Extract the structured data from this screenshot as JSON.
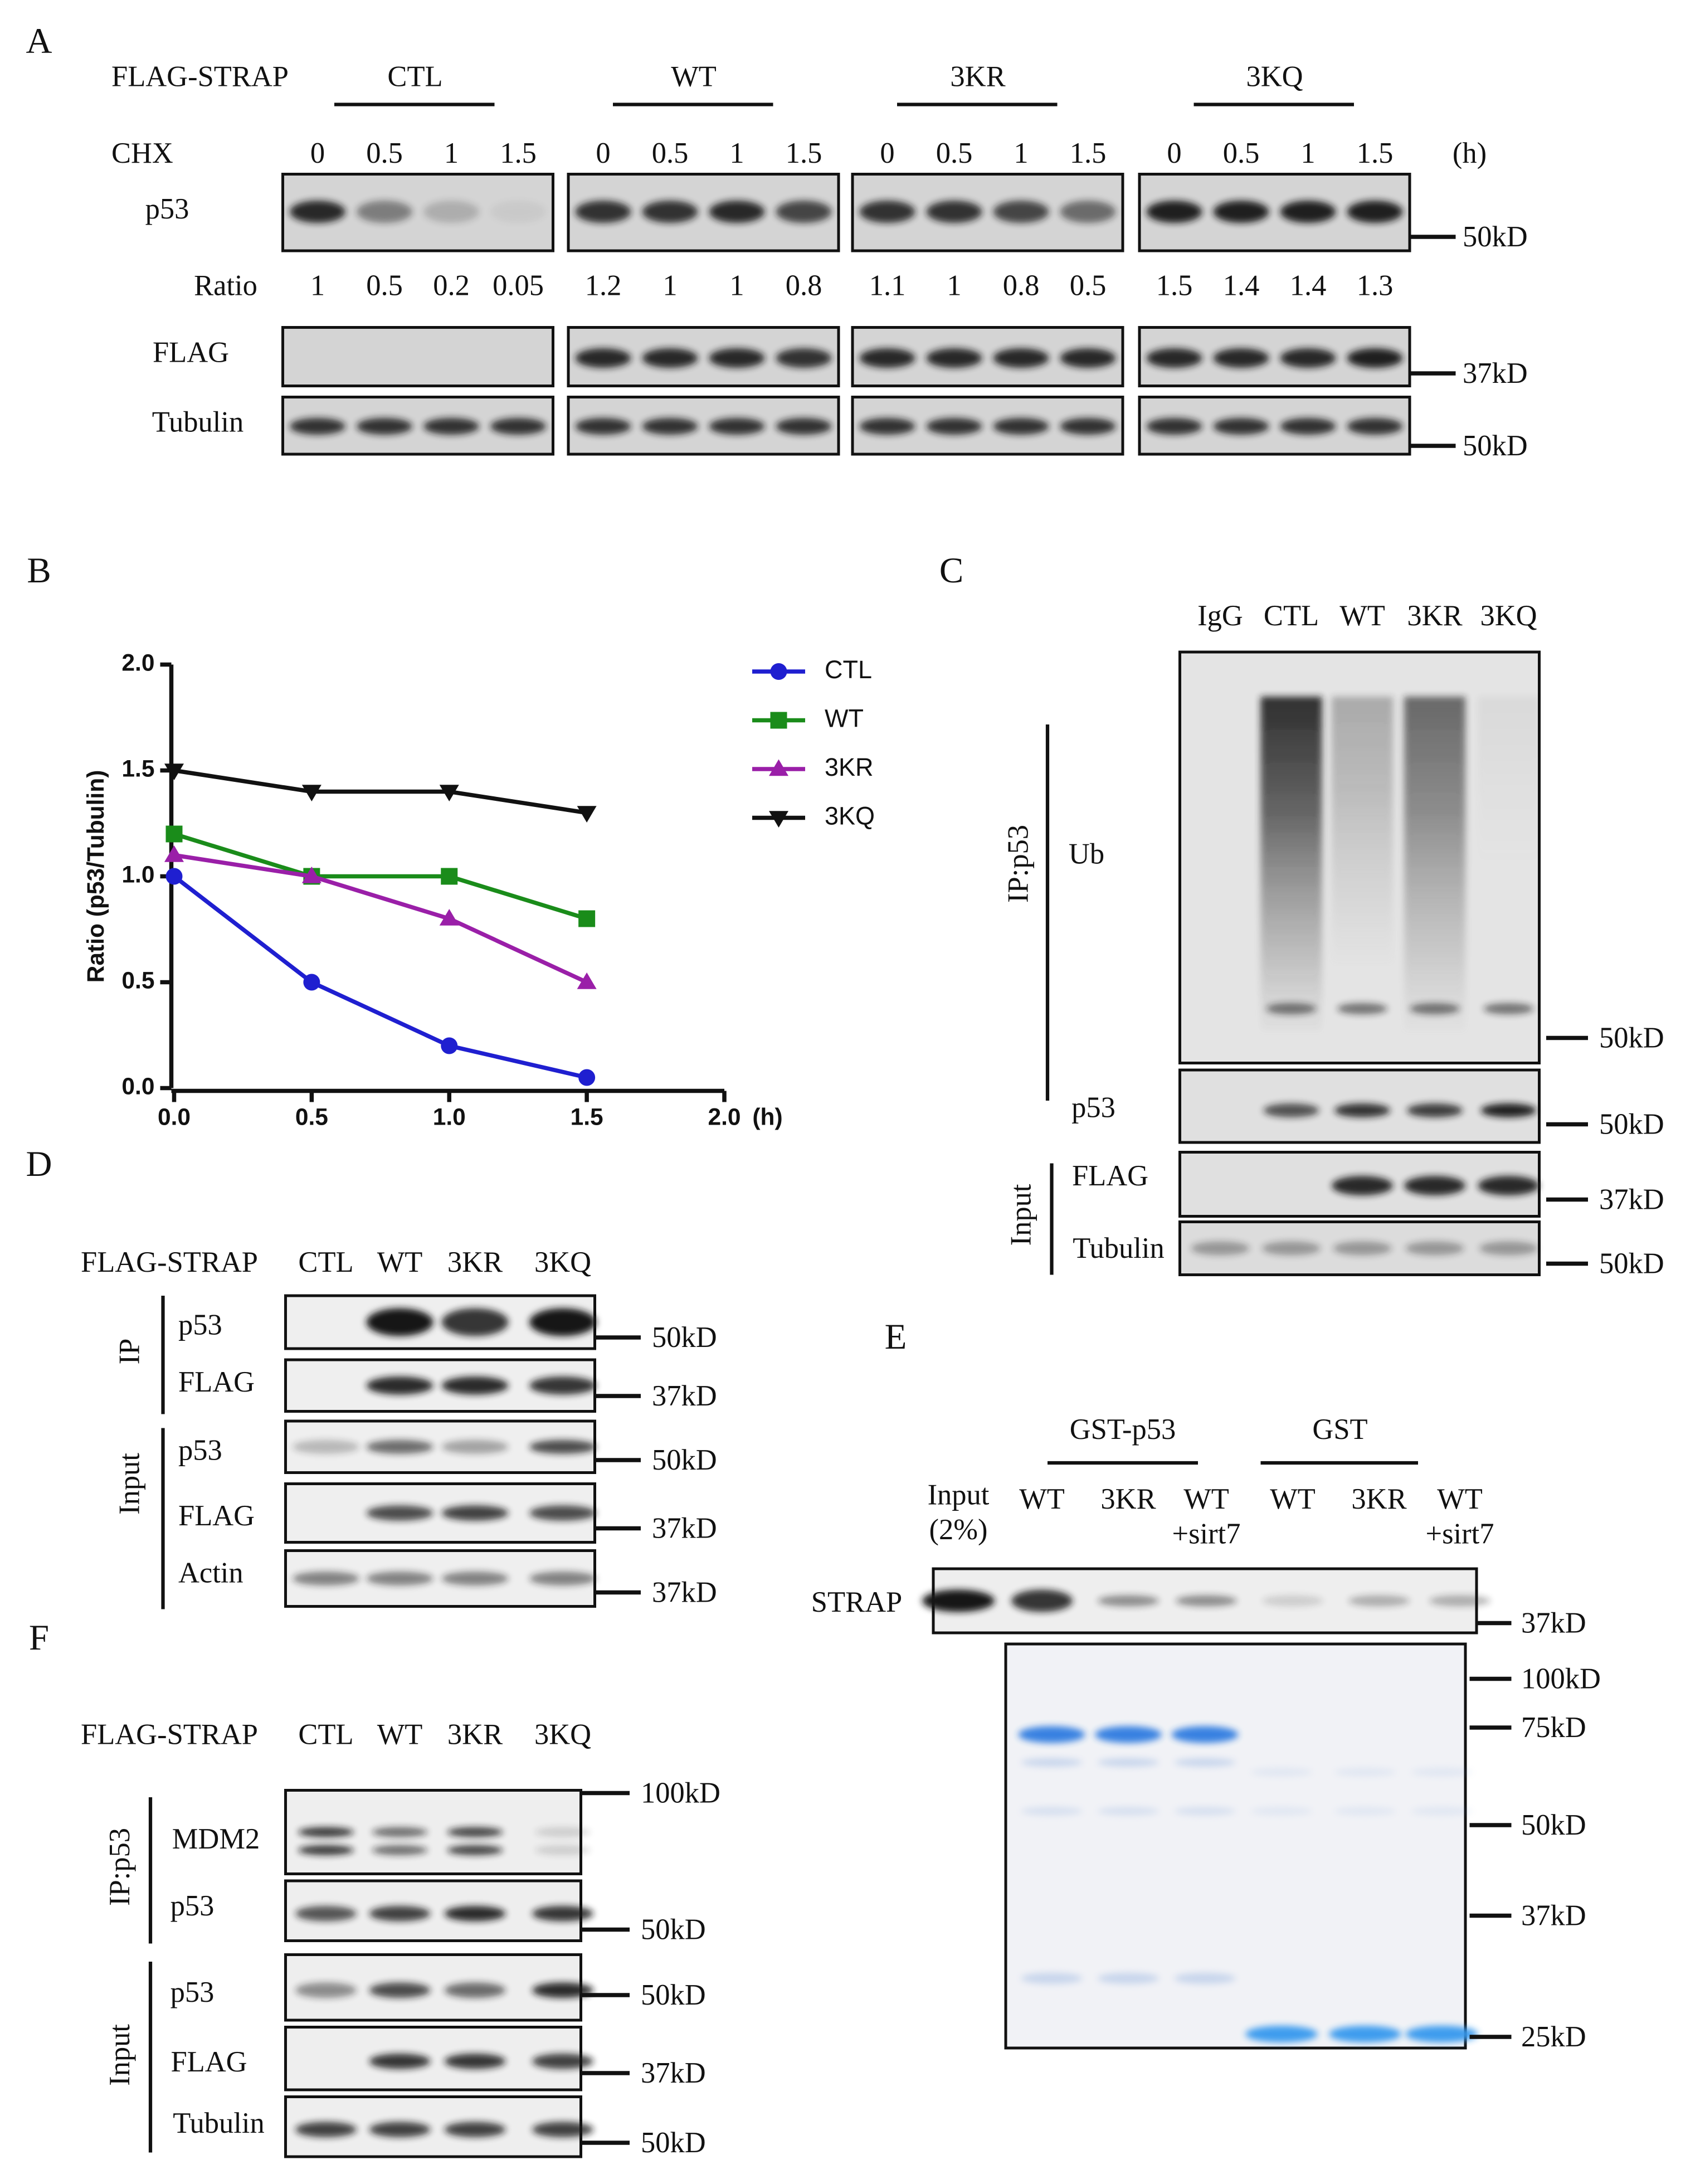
{
  "panel_a": {
    "letter": "A",
    "construct_label": "FLAG-STRAP",
    "groups": [
      "CTL",
      "WT",
      "3KR",
      "3KQ"
    ],
    "chx_label": "CHX",
    "times": [
      "0",
      "0.5",
      "1",
      "1.5"
    ],
    "time_unit": "(h)",
    "rows": [
      "p53",
      "FLAG",
      "Tubulin"
    ],
    "ratio_label": "Ratio",
    "ratios": [
      [
        1,
        0.5,
        0.2,
        0.05
      ],
      [
        1.2,
        1,
        1,
        0.8
      ],
      [
        1.1,
        1,
        0.8,
        0.5
      ],
      [
        1.5,
        1.4,
        1.4,
        1.3
      ]
    ],
    "markers": [
      "50kD",
      "37kD",
      "50kD"
    ]
  },
  "chart_data": {
    "type": "line",
    "panel_letter": "B",
    "ylabel": "Ratio (p53/Tubulin)",
    "xlabel": "(h)",
    "x": [
      0,
      0.5,
      1,
      1.5
    ],
    "xlim": [
      0,
      2
    ],
    "xticks": [
      {
        "value": 0,
        "label": "0.0"
      },
      {
        "value": 0.5,
        "label": "0.5"
      },
      {
        "value": 1,
        "label": "1.0"
      },
      {
        "value": 1.5,
        "label": "1.5"
      },
      {
        "value": 2,
        "label": "2.0"
      }
    ],
    "ylim": [
      0,
      2
    ],
    "yticks": [
      {
        "value": 0,
        "label": "0.0"
      },
      {
        "value": 0.5,
        "label": "0.5"
      },
      {
        "value": 1,
        "label": "1.0"
      },
      {
        "value": 1.5,
        "label": "1.5"
      },
      {
        "value": 2,
        "label": "2.0"
      }
    ],
    "grid": false,
    "legend": "right",
    "series": [
      {
        "name": "CTL",
        "color": "#1f1fd0",
        "marker": "circle",
        "values": [
          1,
          0.5,
          0.2,
          0.05
        ]
      },
      {
        "name": "WT",
        "color": "#1a8c1a",
        "marker": "square",
        "values": [
          1.2,
          1,
          1,
          0.8
        ]
      },
      {
        "name": "3KR",
        "color": "#9a1fa8",
        "marker": "triangle-up",
        "values": [
          1.1,
          1,
          0.8,
          0.5
        ]
      },
      {
        "name": "3KQ",
        "color": "#111111",
        "marker": "triangle-down",
        "values": [
          1.5,
          1.4,
          1.4,
          1.3
        ]
      }
    ]
  },
  "panel_c": {
    "letter": "C",
    "lanes": [
      "IgG",
      "CTL",
      "WT",
      "3KR",
      "3KQ"
    ],
    "ip_label": "IP:p53",
    "input_label": "Input",
    "rows": [
      "Ub",
      "p53",
      "FLAG",
      "Tubulin"
    ],
    "markers": [
      "50kD",
      "50kD",
      "37kD",
      "50kD"
    ]
  },
  "panel_d": {
    "letter": "D",
    "construct_label": "FLAG-STRAP",
    "lanes": [
      "CTL",
      "WT",
      "3KR",
      "3KQ"
    ],
    "groups": [
      "IP",
      "Input"
    ],
    "rows": [
      "p53",
      "FLAG",
      "p53",
      "FLAG",
      "Actin"
    ],
    "markers": [
      "50kD",
      "37kD",
      "50kD",
      "37kD",
      "37kD"
    ]
  },
  "panel_e": {
    "letter": "E",
    "groups": [
      "GST-p53",
      "GST"
    ],
    "lanes": [
      [
        "Input",
        "(2%)"
      ],
      [
        "WT"
      ],
      [
        "3KR"
      ],
      [
        "WT",
        "+sirt7"
      ],
      [
        "WT"
      ],
      [
        "3KR"
      ],
      [
        "WT",
        "+sirt7"
      ]
    ],
    "row": "STRAP",
    "markers": [
      "37kD",
      "100kD",
      "75kD",
      "50kD",
      "37kD",
      "25kD"
    ]
  },
  "panel_f": {
    "letter": "F",
    "construct_label": "FLAG-STRAP",
    "lanes": [
      "CTL",
      "WT",
      "3KR",
      "3KQ"
    ],
    "groups": [
      "IP:p53",
      "Input"
    ],
    "rows": [
      "MDM2",
      "p53",
      "p53",
      "FLAG",
      "Tubulin"
    ],
    "markers": [
      "100kD",
      "50kD",
      "50kD",
      "37kD",
      "50kD"
    ]
  }
}
